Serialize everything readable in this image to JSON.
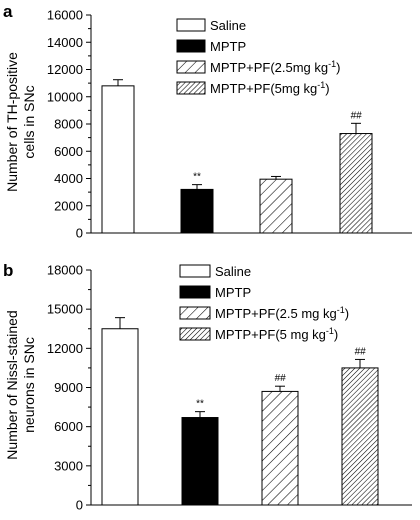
{
  "chart_data": [
    {
      "type": "bar",
      "panel_label": "a",
      "ylabel_line1": "Number of TH-positive",
      "ylabel_line2": "cells in SNc",
      "ylim": [
        0,
        16000
      ],
      "yticks": [
        "0",
        "2000",
        "4000",
        "6000",
        "8000",
        "10000",
        "12000",
        "14000",
        "16000"
      ],
      "legend": [
        {
          "text": "Saline",
          "sup": "",
          "end": ""
        },
        {
          "text": "MPTP",
          "sup": "",
          "end": ""
        },
        {
          "text": "MPTP+PF(2.5mg kg",
          "sup": "-1",
          "end": ")"
        },
        {
          "text": "MPTP+PF(5mg kg",
          "sup": "-1",
          "end": ")"
        }
      ],
      "values": [
        10800,
        3200,
        3950,
        7300
      ],
      "errors": [
        450,
        350,
        200,
        750
      ],
      "annotations": [
        "",
        "**",
        "",
        "##"
      ],
      "legend_placement": "top-right",
      "grid": false
    },
    {
      "type": "bar",
      "panel_label": "b",
      "ylabel_line1": "Number of  Nissl-stained",
      "ylabel_line2": "neurons in SNc",
      "ylim": [
        0,
        18000
      ],
      "yticks": [
        "0",
        "3000",
        "6000",
        "9000",
        "12000",
        "15000",
        "18000"
      ],
      "legend": [
        {
          "text": "Saline",
          "sup": "",
          "end": ""
        },
        {
          "text": "MPTP",
          "sup": "",
          "end": ""
        },
        {
          "text": "MPTP+PF(2.5 mg kg",
          "sup": "-1",
          "end": ")"
        },
        {
          "text": "MPTP+PF(5 mg kg",
          "sup": "-1",
          "end": ")"
        }
      ],
      "values": [
        13500,
        6700,
        8700,
        10500
      ],
      "errors": [
        850,
        450,
        400,
        650
      ],
      "annotations": [
        "",
        "**",
        "##",
        "##"
      ],
      "legend_placement": "top-right",
      "grid": false
    }
  ],
  "colors": {
    "saline": "#ffffff",
    "mptp": "#000000",
    "stroke": "#000000"
  }
}
